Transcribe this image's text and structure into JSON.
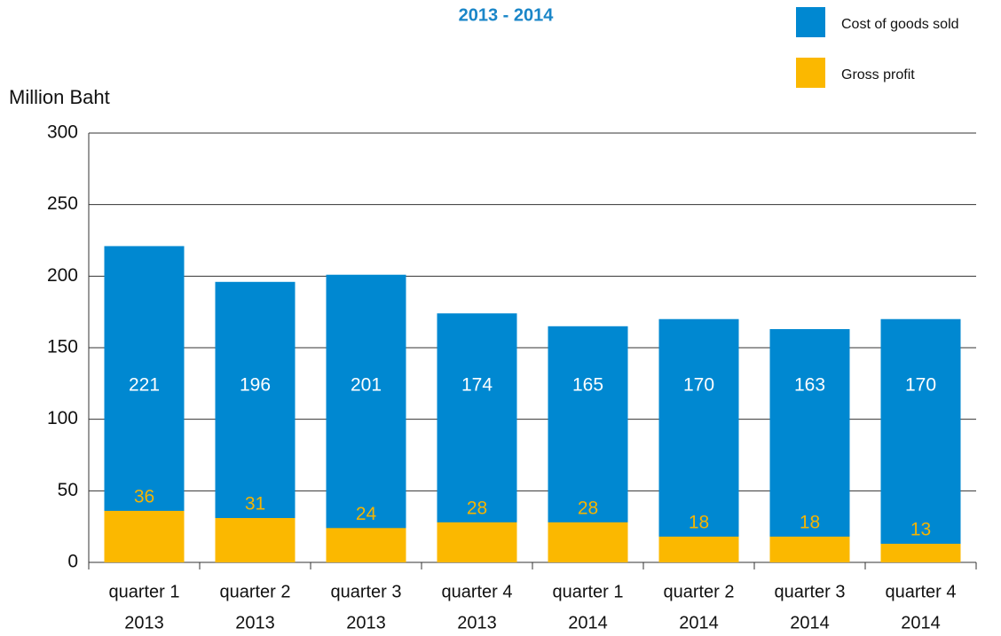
{
  "chart_data": {
    "type": "bar",
    "title": "2013 - 2014",
    "y_label": "Million Baht",
    "categories": [
      [
        "quarter 1",
        "2013"
      ],
      [
        "quarter 2",
        "2013"
      ],
      [
        "quarter 3",
        "2013"
      ],
      [
        "quarter 4",
        "2013"
      ],
      [
        "quarter 1",
        "2014"
      ],
      [
        "quarter 2",
        "2014"
      ],
      [
        "quarter 3",
        "2014"
      ],
      [
        "quarter 4",
        "2014"
      ]
    ],
    "series": [
      {
        "name": "Cost of goods sold",
        "color": "#0088d1",
        "values": [
          221,
          196,
          201,
          174,
          165,
          170,
          163,
          170
        ]
      },
      {
        "name": "Gross profit",
        "color": "#fbb800",
        "values": [
          36,
          31,
          24,
          28,
          28,
          18,
          18,
          13
        ]
      }
    ],
    "ylim": [
      0,
      300
    ],
    "yticks": [
      0,
      50,
      100,
      150,
      200,
      250,
      300
    ],
    "grid": true,
    "legend": "top-right"
  }
}
